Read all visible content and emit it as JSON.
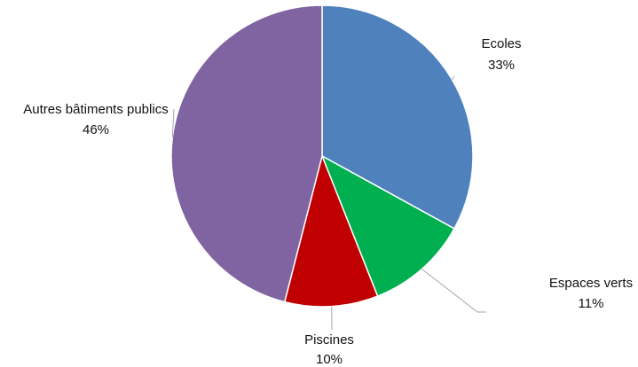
{
  "chart_data": {
    "type": "pie",
    "title": "",
    "slices": [
      {
        "label": "Ecoles",
        "percent_label": "33%",
        "value": 33,
        "color": "#4F81BD"
      },
      {
        "label": "Espaces verts",
        "percent_label": "11%",
        "value": 11,
        "color": "#00B050"
      },
      {
        "label": "Piscines",
        "percent_label": "10%",
        "value": 10,
        "color": "#C00000"
      },
      {
        "label": "Autres bâtiments publics",
        "percent_label": "46%",
        "value": 46,
        "color": "#8064A2"
      }
    ]
  }
}
